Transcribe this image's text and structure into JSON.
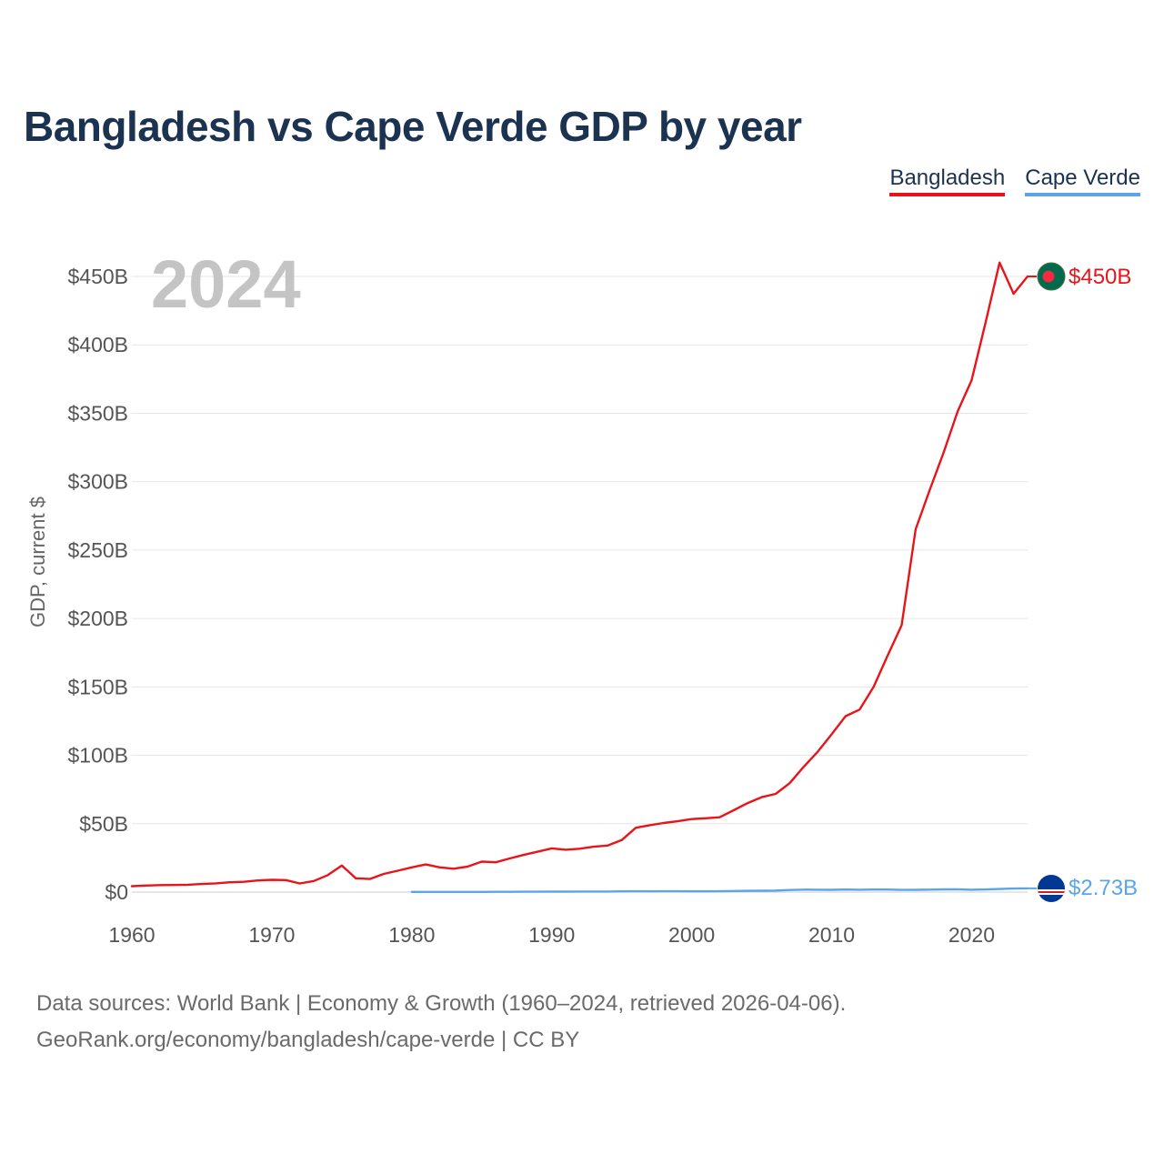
{
  "chart_data": {
    "type": "line",
    "title": "Bangladesh vs Cape Verde GDP by year",
    "ylabel": "GDP, current $",
    "xlabel": "",
    "current_year_label": "2024",
    "xlim": [
      1960,
      2024
    ],
    "ylim": [
      0,
      450
    ],
    "y_unit": "billion USD",
    "x_ticks": [
      1960,
      1970,
      1980,
      1990,
      2000,
      2010,
      2020
    ],
    "x_tick_labels": [
      "1960",
      "1970",
      "1980",
      "1990",
      "2000",
      "2010",
      "2020"
    ],
    "y_ticks": [
      0,
      50,
      100,
      150,
      200,
      250,
      300,
      350,
      400,
      450
    ],
    "y_tick_labels": [
      "$0",
      "$50B",
      "$100B",
      "$150B",
      "$200B",
      "$250B",
      "$300B",
      "$350B",
      "$400B",
      "$450B"
    ],
    "grid": true,
    "legend_position": "top-right",
    "series": [
      {
        "name": "Bangladesh",
        "color": "#e8141a",
        "end_label": "$450B",
        "marker_icon": "bangladesh-flag-icon",
        "x": [
          1960,
          1961,
          1962,
          1963,
          1964,
          1965,
          1966,
          1967,
          1968,
          1969,
          1970,
          1971,
          1972,
          1973,
          1974,
          1975,
          1976,
          1977,
          1978,
          1979,
          1980,
          1981,
          1982,
          1983,
          1984,
          1985,
          1986,
          1987,
          1988,
          1989,
          1990,
          1991,
          1992,
          1993,
          1994,
          1995,
          1996,
          1997,
          1998,
          1999,
          2000,
          2001,
          2002,
          2003,
          2004,
          2005,
          2006,
          2007,
          2008,
          2009,
          2010,
          2011,
          2012,
          2013,
          2014,
          2015,
          2016,
          2017,
          2018,
          2019,
          2020,
          2021,
          2022,
          2023,
          2024
        ],
        "values": [
          4.3,
          4.8,
          5.1,
          5.2,
          5.4,
          5.9,
          6.4,
          7.2,
          7.5,
          8.5,
          9.0,
          8.8,
          6.3,
          8.1,
          12.4,
          19.4,
          10.1,
          9.6,
          13.3,
          15.6,
          18.1,
          20.2,
          18.1,
          17.1,
          18.7,
          22.3,
          21.8,
          24.6,
          27.2,
          29.5,
          32.0,
          31.0,
          31.7,
          33.2,
          34.0,
          38.0,
          47.0,
          48.9,
          50.5,
          51.8,
          53.4,
          54.0,
          54.7,
          59.8,
          65.1,
          69.4,
          71.8,
          79.6,
          91.6,
          102.5,
          115.3,
          128.6,
          133.4,
          150.0,
          172.9,
          195.1,
          265.2,
          293.8,
          321.4,
          351.2,
          374.0,
          416.3,
          460.2,
          437.4,
          450.0
        ]
      },
      {
        "name": "Cape Verde",
        "color": "#5aa5e8",
        "end_label": "$2.73B",
        "marker_icon": "cape-verde-flag-icon",
        "x": [
          1980,
          1981,
          1982,
          1983,
          1984,
          1985,
          1986,
          1987,
          1988,
          1989,
          1990,
          1991,
          1992,
          1993,
          1994,
          1995,
          1996,
          1997,
          1998,
          1999,
          2000,
          2001,
          2002,
          2003,
          2004,
          2005,
          2006,
          2007,
          2008,
          2009,
          2010,
          2011,
          2012,
          2013,
          2014,
          2015,
          2016,
          2017,
          2018,
          2019,
          2020,
          2021,
          2022,
          2023,
          2024
        ],
        "values": [
          0.11,
          0.12,
          0.12,
          0.12,
          0.12,
          0.14,
          0.18,
          0.22,
          0.25,
          0.25,
          0.34,
          0.35,
          0.39,
          0.37,
          0.42,
          0.54,
          0.6,
          0.56,
          0.57,
          0.61,
          0.54,
          0.56,
          0.62,
          0.8,
          0.92,
          0.97,
          1.11,
          1.51,
          1.79,
          1.71,
          1.66,
          1.87,
          1.75,
          1.85,
          1.86,
          1.6,
          1.66,
          1.77,
          1.99,
          2.03,
          1.7,
          1.94,
          2.27,
          2.59,
          2.73
        ]
      }
    ]
  },
  "legend": {
    "bangladesh": "Bangladesh",
    "cape_verde": "Cape Verde"
  },
  "footer": {
    "line1": "Data sources: World Bank | Economy & Growth (1960–2024, retrieved 2026-04-06).",
    "line2": "GeoRank.org/economy/bangladesh/cape-verde | CC BY"
  }
}
